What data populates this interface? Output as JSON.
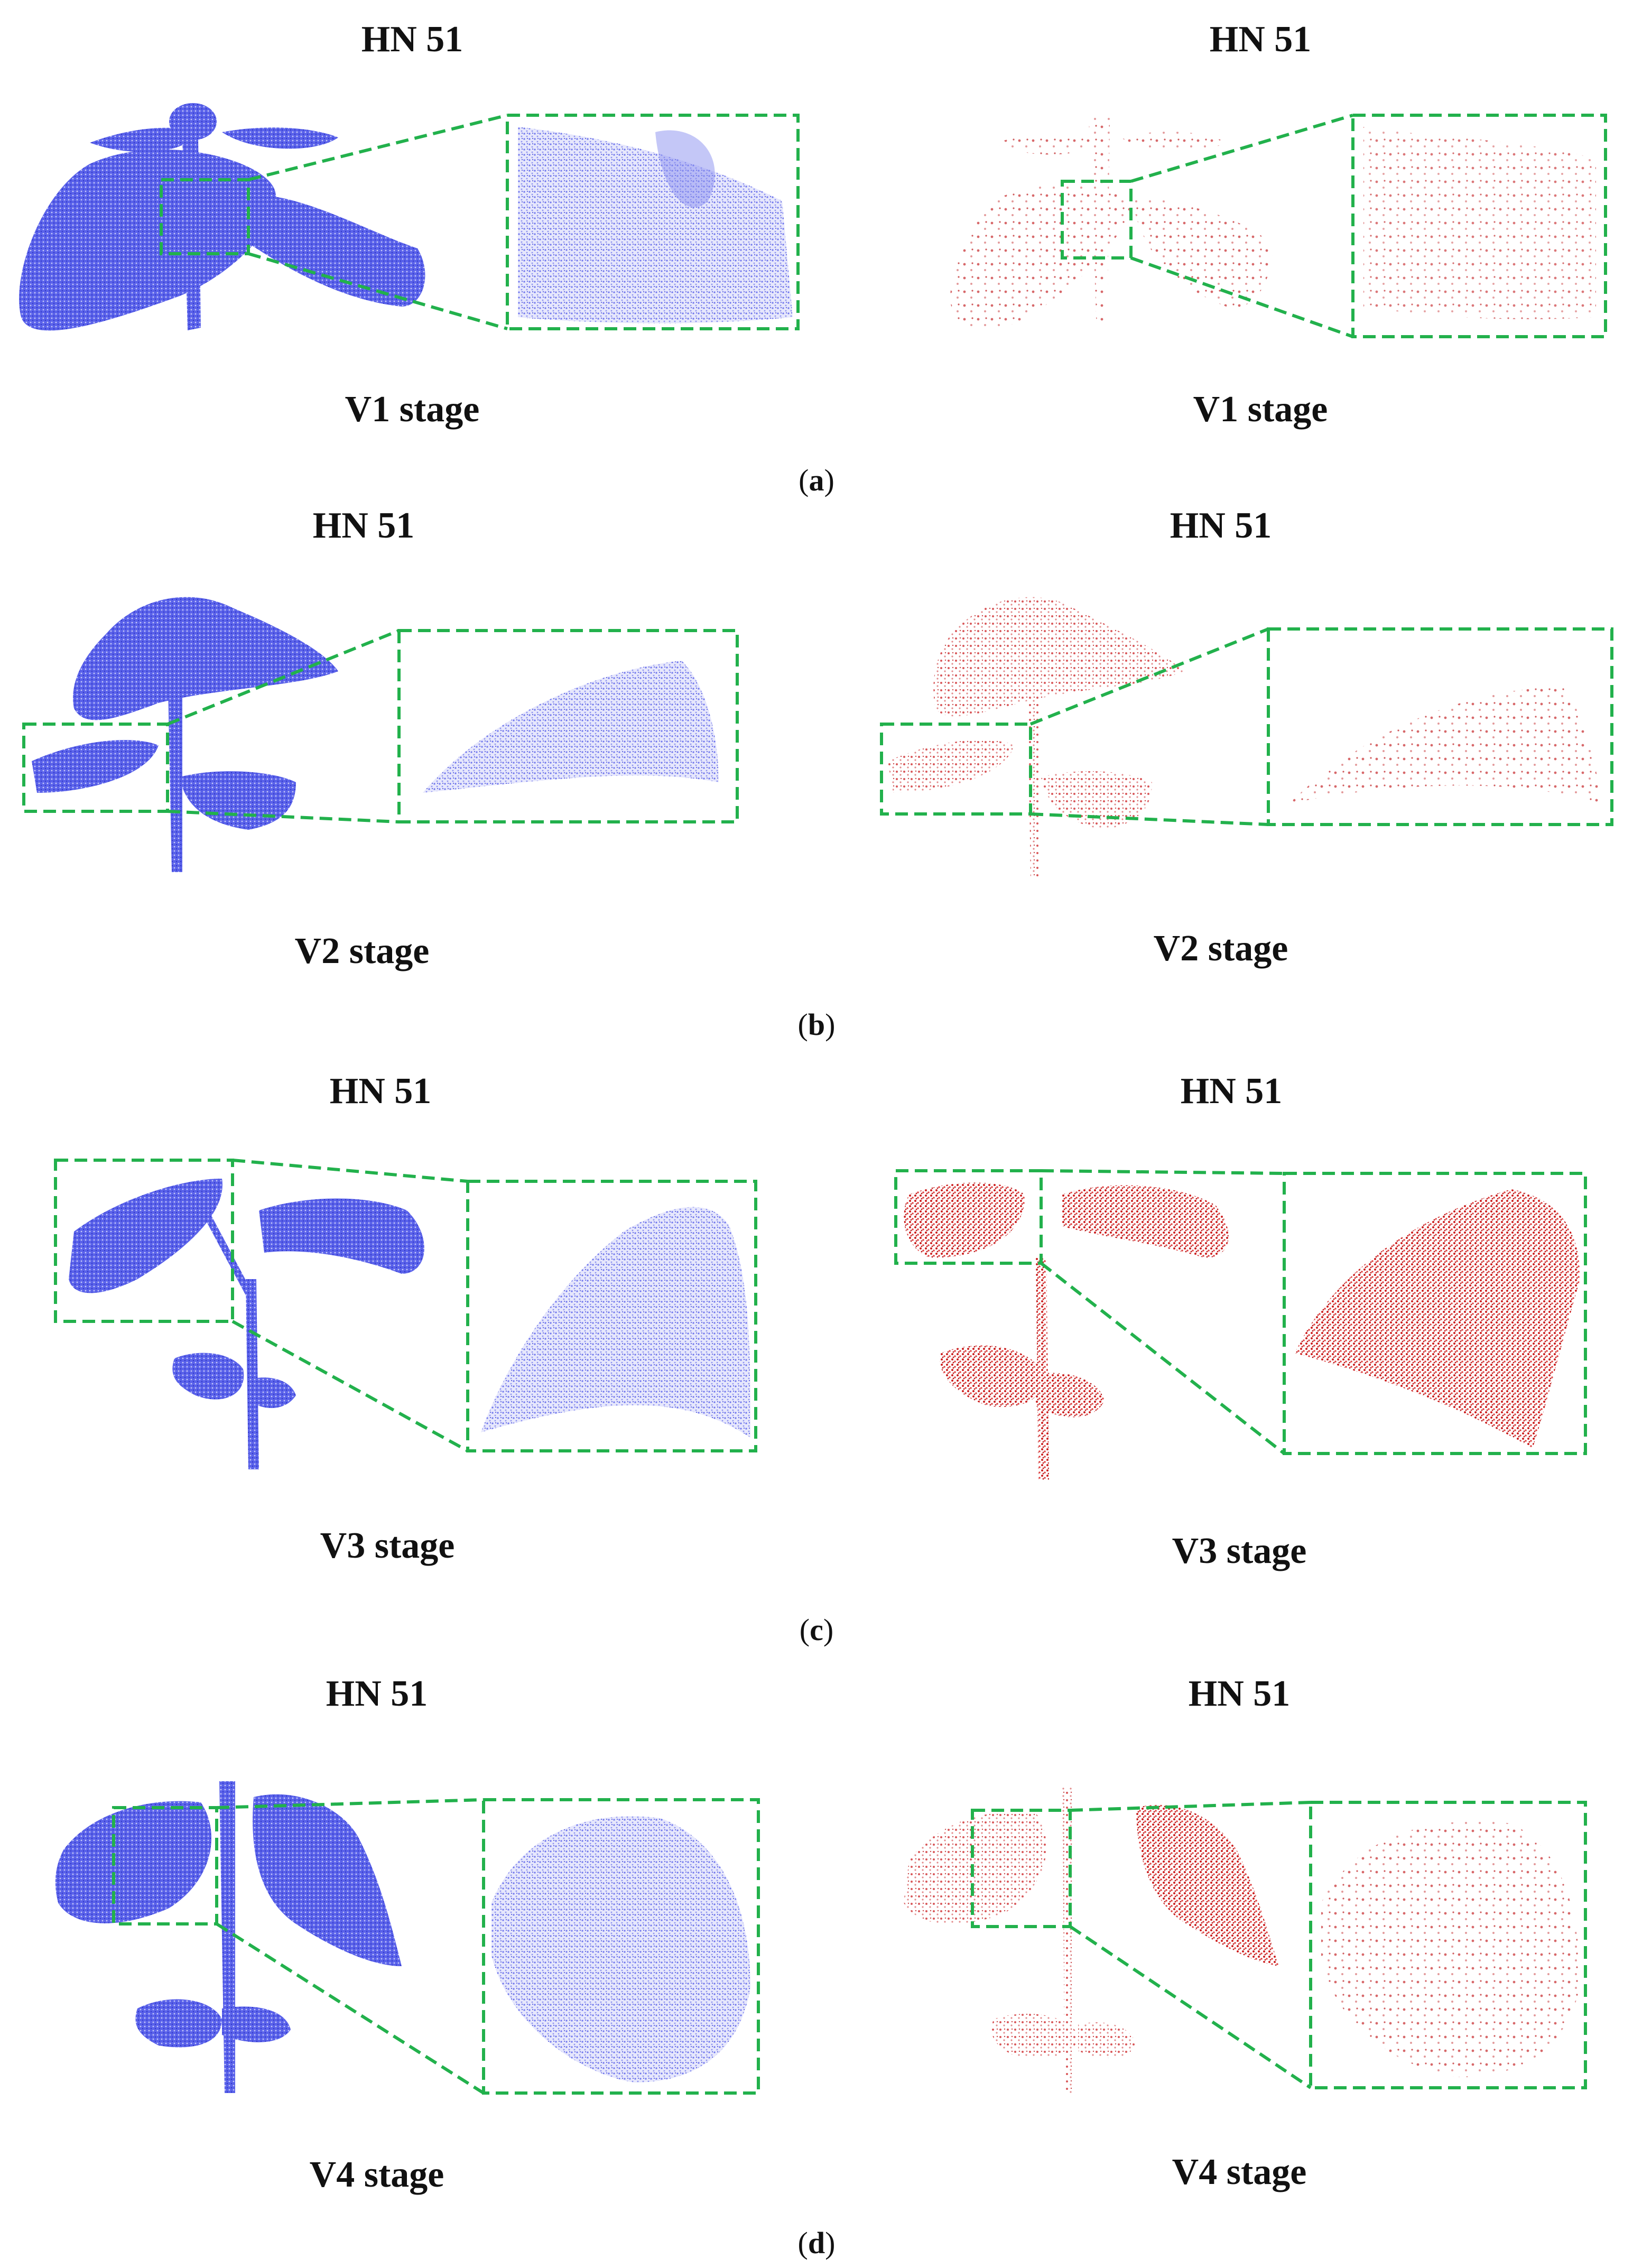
{
  "colors": {
    "dense_cloud": "#4a52e6",
    "sparse_cloud": "#d43a3a",
    "zoom_box": "#22b14c"
  },
  "panels": [
    {
      "id": "a",
      "caption_letter": "a",
      "left": {
        "title": "HN 51",
        "stage": "V1 stage"
      },
      "right": {
        "title": "HN 51",
        "stage": "V1 stage"
      }
    },
    {
      "id": "b",
      "caption_letter": "b",
      "left": {
        "title": "HN 51",
        "stage": "V2 stage"
      },
      "right": {
        "title": "HN 51",
        "stage": "V2 stage"
      }
    },
    {
      "id": "c",
      "caption_letter": "c",
      "left": {
        "title": "HN 51",
        "stage": "V3 stage"
      },
      "right": {
        "title": "HN 51",
        "stage": "V3 stage"
      }
    },
    {
      "id": "d",
      "caption_letter": "d",
      "left": {
        "title": "HN 51",
        "stage": "V4 stage"
      },
      "right": {
        "title": "HN 51",
        "stage": "V4 stage"
      }
    }
  ]
}
